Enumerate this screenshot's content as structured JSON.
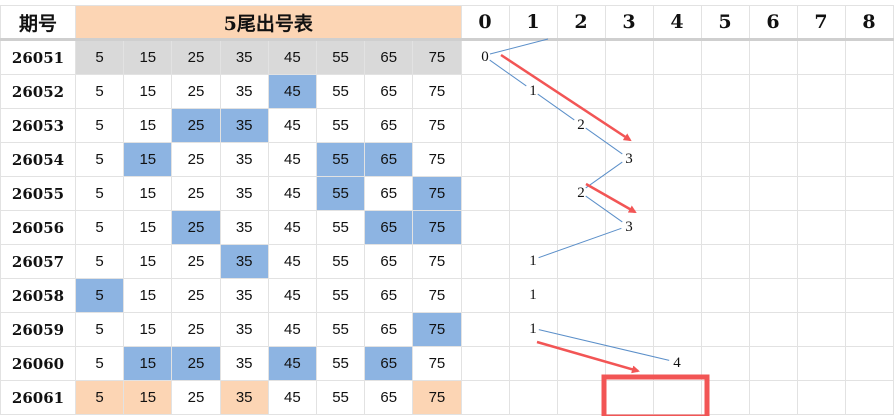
{
  "header": {
    "period_label": "期号",
    "title": "5尾出号表",
    "digits": [
      "0",
      "1",
      "2",
      "3",
      "4",
      "5",
      "6",
      "7",
      "8"
    ]
  },
  "numbers": [
    "5",
    "15",
    "25",
    "35",
    "45",
    "55",
    "65",
    "75"
  ],
  "colors": {
    "highlight": "#8db4e2",
    "first_row": "#d9d9d9",
    "last_row": "#fcd5b4",
    "trend_line": "#5b8fc9",
    "arrow": "#f25555"
  },
  "rows": [
    {
      "period": "26051",
      "style": "gray",
      "hits": [],
      "trend": "0"
    },
    {
      "period": "26052",
      "hits": [
        "45"
      ],
      "trend": "1"
    },
    {
      "period": "26053",
      "hits": [
        "25",
        "35"
      ],
      "trend": "2"
    },
    {
      "period": "26054",
      "hits": [
        "15",
        "55",
        "65"
      ],
      "trend": "3"
    },
    {
      "period": "26055",
      "hits": [
        "55",
        "75"
      ],
      "trend": "2"
    },
    {
      "period": "26056",
      "hits": [
        "25",
        "65",
        "75"
      ],
      "trend": "3"
    },
    {
      "period": "26057",
      "hits": [
        "35"
      ],
      "trend": "1"
    },
    {
      "period": "26058",
      "hits": [
        "5"
      ],
      "trend": "1"
    },
    {
      "period": "26059",
      "hits": [
        "75"
      ],
      "trend": "1"
    },
    {
      "period": "26060",
      "hits": [
        "15",
        "25",
        "45",
        "65"
      ],
      "trend": "4"
    },
    {
      "period": "26061",
      "style": "orange",
      "hits": [
        "5",
        "15",
        "35",
        "75"
      ],
      "trend": null
    }
  ]
}
